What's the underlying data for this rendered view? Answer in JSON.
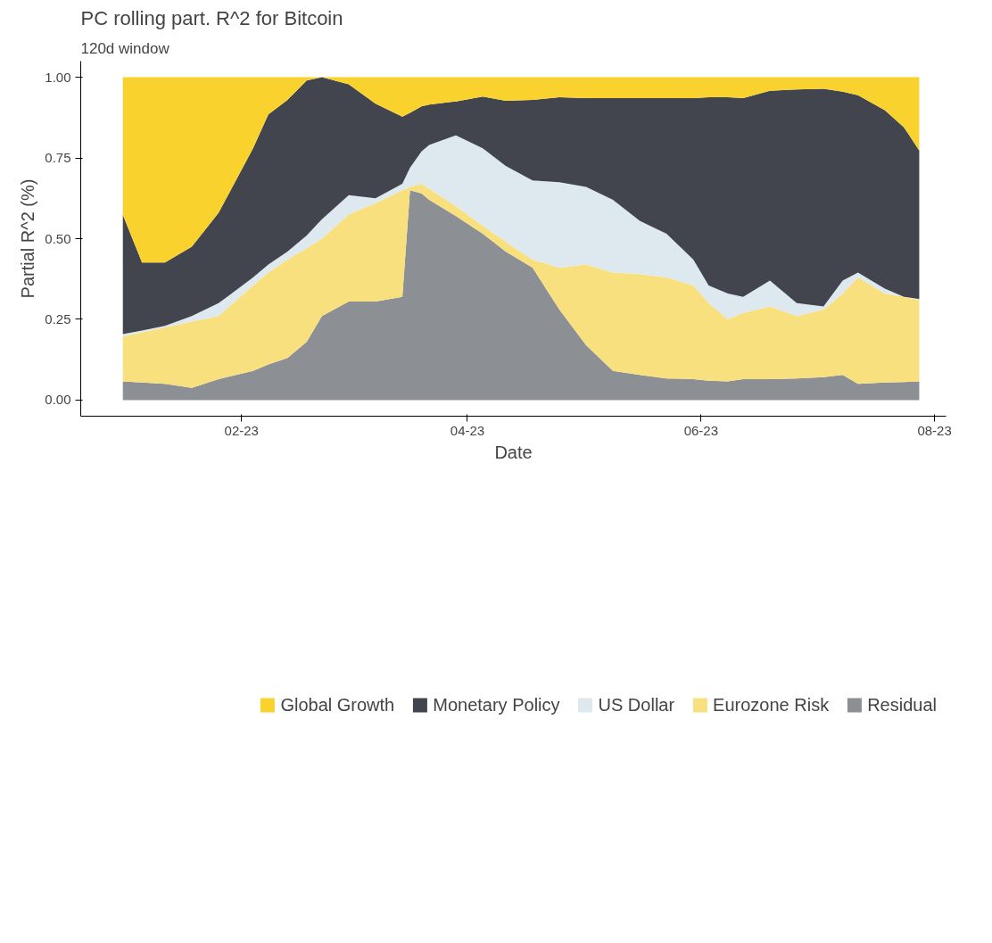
{
  "chart_data": {
    "type": "area",
    "stacked": true,
    "title": "PC rolling part. R^2 for Bitcoin",
    "subtitle": "120d window",
    "xlabel": "Date",
    "ylabel": "Partial R^2 (%)",
    "x": [
      "2023-01-01",
      "2023-01-06",
      "2023-01-12",
      "2023-01-19",
      "2023-01-26",
      "2023-02-04",
      "2023-02-08",
      "2023-02-13",
      "2023-02-18",
      "2023-02-22",
      "2023-03-01",
      "2023-03-08",
      "2023-03-15",
      "2023-03-17",
      "2023-03-20",
      "2023-03-22",
      "2023-03-29",
      "2023-04-05",
      "2023-04-11",
      "2023-04-18",
      "2023-04-25",
      "2023-05-02",
      "2023-05-09",
      "2023-05-16",
      "2023-05-23",
      "2023-05-30",
      "2023-06-03",
      "2023-06-08",
      "2023-06-12",
      "2023-06-19",
      "2023-06-26",
      "2023-07-03",
      "2023-07-08",
      "2023-07-12",
      "2023-07-19",
      "2023-07-24",
      "2023-07-28"
    ],
    "series": [
      {
        "name": "Residual",
        "color": "#8c8f93",
        "values": [
          0.058,
          0.054,
          0.05,
          0.038,
          0.065,
          0.09,
          0.11,
          0.13,
          0.18,
          0.26,
          0.305,
          0.305,
          0.32,
          0.65,
          0.64,
          0.62,
          0.57,
          0.515,
          0.46,
          0.41,
          0.28,
          0.17,
          0.09,
          0.078,
          0.067,
          0.065,
          0.06,
          0.058,
          0.065,
          0.065,
          0.067,
          0.071,
          0.078,
          0.05,
          0.054,
          0.056,
          0.058
        ]
      },
      {
        "name": "Eurozone Risk",
        "color": "#f9e07f",
        "values": [
          0.139,
          0.156,
          0.175,
          0.205,
          0.195,
          0.265,
          0.285,
          0.305,
          0.29,
          0.24,
          0.27,
          0.305,
          0.33,
          0.01,
          0.03,
          0.035,
          0.03,
          0.025,
          0.03,
          0.025,
          0.13,
          0.25,
          0.305,
          0.312,
          0.313,
          0.29,
          0.24,
          0.192,
          0.205,
          0.225,
          0.193,
          0.209,
          0.252,
          0.33,
          0.276,
          0.264,
          0.252
        ]
      },
      {
        "name": "US Dollar",
        "color": "#dde9ee",
        "values": [
          0.007,
          0.005,
          0.005,
          0.017,
          0.04,
          0.025,
          0.025,
          0.025,
          0.04,
          0.06,
          0.06,
          0.015,
          0.02,
          0.06,
          0.1,
          0.135,
          0.22,
          0.24,
          0.235,
          0.245,
          0.265,
          0.24,
          0.225,
          0.165,
          0.135,
          0.08,
          0.055,
          0.08,
          0.05,
          0.08,
          0.04,
          0.01,
          0.04,
          0.015,
          0.015,
          0.0,
          0.003
        ]
      },
      {
        "name": "Monetary Policy",
        "color": "#42454d",
        "values": [
          0.37,
          0.211,
          0.196,
          0.215,
          0.28,
          0.4,
          0.465,
          0.47,
          0.48,
          0.44,
          0.343,
          0.293,
          0.208,
          0.17,
          0.14,
          0.125,
          0.105,
          0.16,
          0.202,
          0.25,
          0.263,
          0.275,
          0.315,
          0.38,
          0.42,
          0.5,
          0.583,
          0.608,
          0.615,
          0.588,
          0.662,
          0.674,
          0.585,
          0.549,
          0.553,
          0.525,
          0.46
        ]
      },
      {
        "name": "Global Growth",
        "color": "#f9d22e",
        "values": [
          0.426,
          0.574,
          0.574,
          0.525,
          0.42,
          0.22,
          0.115,
          0.07,
          0.01,
          0.0,
          0.022,
          0.082,
          0.122,
          0.11,
          0.09,
          0.085,
          0.075,
          0.06,
          0.073,
          0.07,
          0.062,
          0.065,
          0.065,
          0.065,
          0.065,
          0.065,
          0.062,
          0.062,
          0.065,
          0.042,
          0.038,
          0.036,
          0.045,
          0.056,
          0.102,
          0.155,
          0.227
        ]
      }
    ],
    "xlim": [
      "2022-12-21",
      "2023-08-04"
    ],
    "xticks": [
      {
        "value": "2023-02-01",
        "label": "02-23"
      },
      {
        "value": "2023-04-01",
        "label": "04-23"
      },
      {
        "value": "2023-06-01",
        "label": "06-23"
      },
      {
        "value": "2023-08-01",
        "label": "08-23"
      }
    ],
    "ylim": [
      -0.05,
      1.05
    ],
    "yticks": [
      {
        "value": 0,
        "label": "0.00"
      },
      {
        "value": 0.25,
        "label": "0.25"
      },
      {
        "value": 0.5,
        "label": "0.50"
      },
      {
        "value": 0.75,
        "label": "0.75"
      },
      {
        "value": 1,
        "label": "1.00"
      }
    ],
    "grid": false,
    "legend": "bottom"
  }
}
